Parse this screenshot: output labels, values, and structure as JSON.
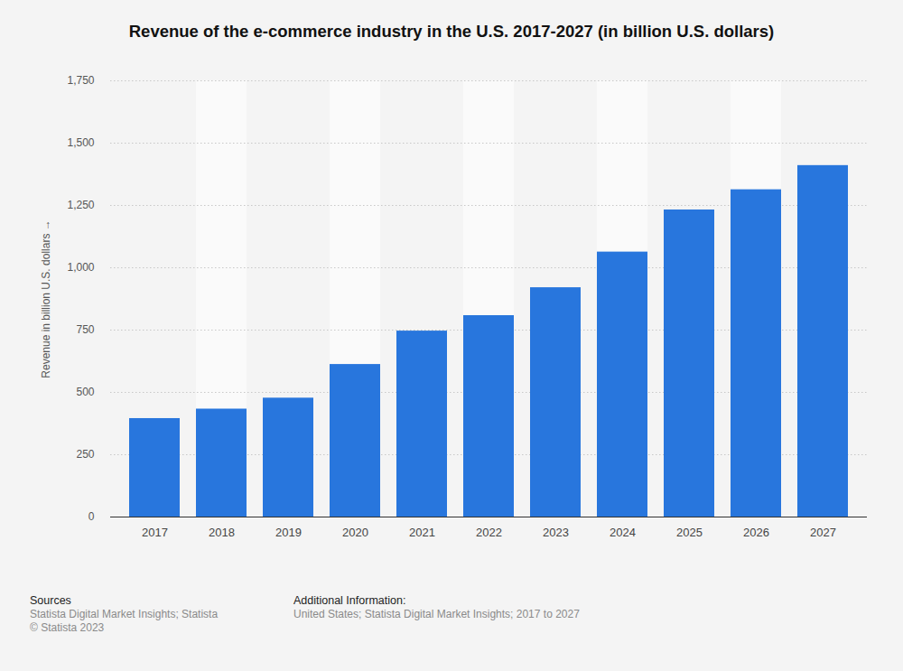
{
  "chart_data": {
    "type": "bar",
    "title": "Revenue of the e-commerce industry in the U.S. 2017-2027 (in billion U.S. dollars)",
    "y_label": "Revenue in billion U.S. dollars",
    "categories": [
      "2017",
      "2018",
      "2019",
      "2020",
      "2021",
      "2022",
      "2023",
      "2024",
      "2025",
      "2026",
      "2027"
    ],
    "values": [
      395,
      433,
      477,
      612,
      746,
      808,
      920,
      1063,
      1232,
      1313,
      1410
    ],
    "color": "#2876dd",
    "ylim": [
      0,
      1750
    ],
    "yticks": [
      0,
      250,
      500,
      750,
      {
        "value": 1000,
        "label": "1,000"
      },
      {
        "value": 1250,
        "label": "1,250"
      },
      {
        "value": 1500,
        "label": "1,500"
      },
      {
        "value": 1750,
        "label": "1,750"
      }
    ],
    "grid": true
  },
  "footer": {
    "sources_heading": "Sources",
    "sources": [
      "Statista Digital Market Insights; Statista",
      "© Statista 2023"
    ],
    "info_heading": "Additional Information:",
    "info": [
      "United States; Statista Digital Market Insights; 2017 to 2027"
    ]
  }
}
